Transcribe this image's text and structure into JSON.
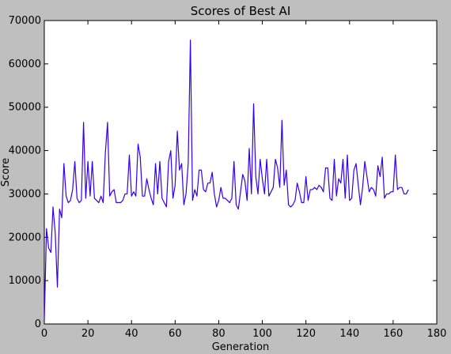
{
  "chart_data": {
    "type": "line",
    "title": "Scores of Best AI",
    "xlabel": "Generation",
    "ylabel": "Score",
    "xlim": [
      0,
      180
    ],
    "ylim": [
      0,
      70000
    ],
    "xticks": [
      0,
      20,
      40,
      60,
      80,
      100,
      120,
      140,
      160,
      180
    ],
    "yticks": [
      0,
      10000,
      20000,
      30000,
      40000,
      50000,
      60000,
      70000
    ],
    "grid": false,
    "line_color": "#3300ee",
    "series": [
      {
        "x": [
          0,
          1,
          2,
          3,
          4,
          5,
          6,
          7,
          8,
          9,
          10,
          11,
          12,
          13,
          14,
          15,
          16,
          17,
          18,
          19,
          20,
          21,
          22,
          23,
          24,
          25,
          26,
          27,
          28,
          29,
          30,
          31,
          32,
          33,
          34,
          35,
          36,
          37,
          38,
          39,
          40,
          41,
          42,
          43,
          44,
          45,
          46,
          47,
          48,
          49,
          50,
          51,
          52,
          53,
          54,
          55,
          56,
          57,
          58,
          59,
          60,
          61,
          62,
          63,
          64,
          65,
          66,
          67,
          68,
          69,
          70,
          71,
          72,
          73,
          74,
          75,
          76,
          77,
          78,
          79,
          80,
          81,
          82,
          83,
          84,
          85,
          86,
          87,
          88,
          89,
          90,
          91,
          92,
          93,
          94,
          95,
          96,
          97,
          98,
          99,
          100,
          101,
          102,
          103,
          104,
          105,
          106,
          107,
          108,
          109,
          110,
          111,
          112,
          113,
          114,
          115,
          116,
          117,
          118,
          119,
          120,
          121,
          122,
          123,
          124,
          125,
          126,
          127,
          128,
          129,
          130,
          131,
          132,
          133,
          134,
          135,
          136,
          137,
          138,
          139,
          140,
          141,
          142,
          143,
          144,
          145,
          146,
          147,
          148,
          149,
          150,
          151,
          152,
          153,
          154,
          155,
          156,
          157,
          158,
          159,
          160,
          161,
          162,
          163,
          164,
          165,
          166,
          167
        ],
        "y": [
          800,
          22000,
          17500,
          16500,
          27000,
          21000,
          8500,
          26500,
          24500,
          37000,
          29500,
          28000,
          28500,
          31000,
          37500,
          29000,
          28000,
          28500,
          46500,
          29000,
          37500,
          29500,
          37500,
          29000,
          28500,
          28000,
          29500,
          28000,
          39500,
          46500,
          29500,
          30500,
          31000,
          28000,
          28000,
          28000,
          28500,
          30000,
          30000,
          39000,
          29500,
          30500,
          29500,
          41500,
          38500,
          29500,
          29500,
          33500,
          31000,
          29000,
          27500,
          37000,
          30000,
          37500,
          29000,
          28000,
          27000,
          37500,
          40000,
          29000,
          32000,
          44500,
          35500,
          37000,
          27500,
          30000,
          37000,
          65500,
          28500,
          31000,
          29500,
          35500,
          35500,
          31000,
          30500,
          32500,
          32500,
          35000,
          30000,
          27000,
          28500,
          31500,
          29000,
          29000,
          28500,
          28000,
          29000,
          37500,
          27500,
          26500,
          30500,
          34500,
          33000,
          28500,
          40500,
          30000,
          50800,
          34000,
          30000,
          38000,
          33500,
          30000,
          38000,
          29500,
          30500,
          31500,
          38000,
          36000,
          31500,
          47000,
          32000,
          35500,
          27500,
          27000,
          27500,
          28500,
          32500,
          30500,
          28000,
          28000,
          34000,
          28500,
          31000,
          31000,
          31500,
          31000,
          32000,
          31500,
          30500,
          36000,
          36000,
          29000,
          28500,
          38000,
          29500,
          33500,
          32500,
          38000,
          29000,
          39000,
          28500,
          29000,
          35500,
          37000,
          32000,
          27500,
          31500,
          37500,
          34000,
          30500,
          31500,
          31000,
          29500,
          36500,
          34000,
          38500,
          29000,
          30000,
          30000,
          30500,
          30500,
          39000,
          31000,
          31500,
          31500,
          30000,
          30000,
          31000
        ]
      }
    ]
  }
}
